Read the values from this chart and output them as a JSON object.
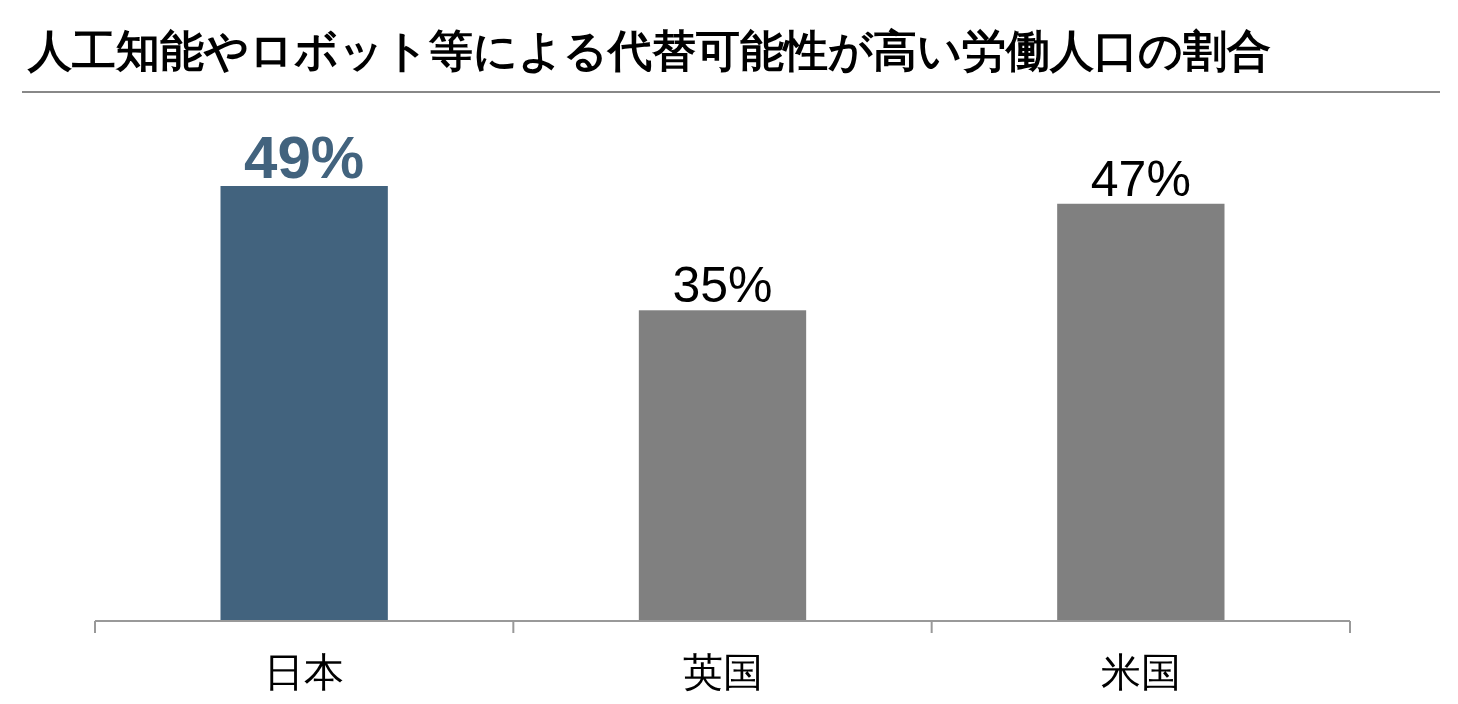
{
  "chart_data": {
    "type": "bar",
    "title": "人工知能やロボット等による代替可能性が高い労働人口の割合",
    "categories": [
      "日本",
      "英国",
      "米国"
    ],
    "values": [
      49,
      35,
      47
    ],
    "colors": [
      "#42637e",
      "#808080",
      "#808080"
    ],
    "value_labels": [
      "49%",
      "35%",
      "47%"
    ],
    "grid": false
  }
}
